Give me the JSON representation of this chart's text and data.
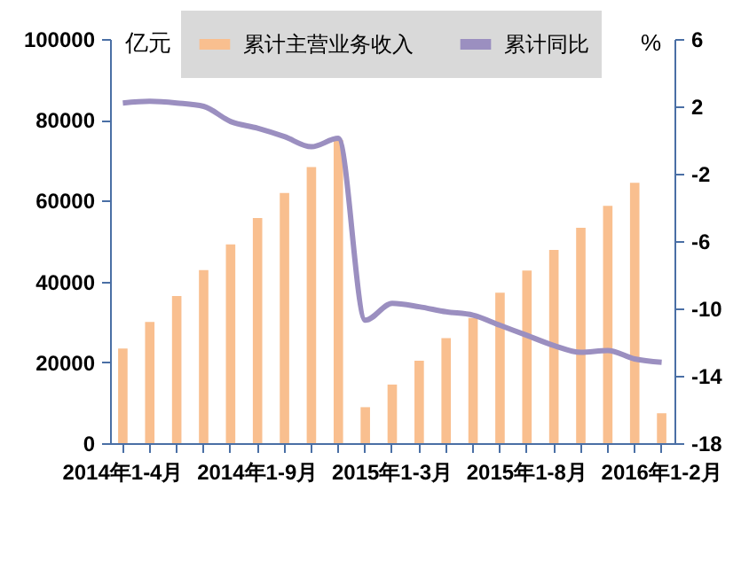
{
  "chart_data": {
    "type": "bar",
    "categories": [
      "2014年1-4月",
      null,
      null,
      null,
      null,
      "2014年1-9月",
      null,
      null,
      null,
      null,
      "2015年1-3月",
      null,
      null,
      null,
      null,
      "2015年1-8月",
      null,
      null,
      null,
      null,
      "2016年1-2月"
    ],
    "series": [
      {
        "name": "累计主营业务收入",
        "color": "#f9bf8f",
        "values": [
          23400,
          30000,
          36400,
          42800,
          49200,
          55700,
          61900,
          68300,
          75000,
          8900,
          14500,
          20400,
          26000,
          31000,
          37200,
          42700,
          47800,
          53300,
          58700,
          64400,
          7400
        ]
      },
      {
        "name": "累计同比",
        "type": "line",
        "axis": "y2",
        "color": "#9b8fc0",
        "values": [
          2.2,
          2.3,
          2.2,
          2.0,
          1.1,
          0.7,
          0.2,
          -0.4,
          0.1,
          -10.7,
          -9.7,
          -9.9,
          -10.2,
          -10.4,
          -11.0,
          -11.6,
          -12.2,
          -12.6,
          -12.5,
          -13.0,
          -13.2
        ]
      }
    ],
    "ylabel": "亿元",
    "y2label": "%",
    "ylim": [
      0,
      100000
    ],
    "yticks": [
      0,
      20000,
      40000,
      60000,
      80000,
      100000
    ],
    "y2lim": [
      -18,
      6
    ],
    "y2ticks": [
      -18,
      -14,
      -10,
      -6,
      -2,
      2,
      6
    ],
    "legend": "top",
    "grid": false
  }
}
